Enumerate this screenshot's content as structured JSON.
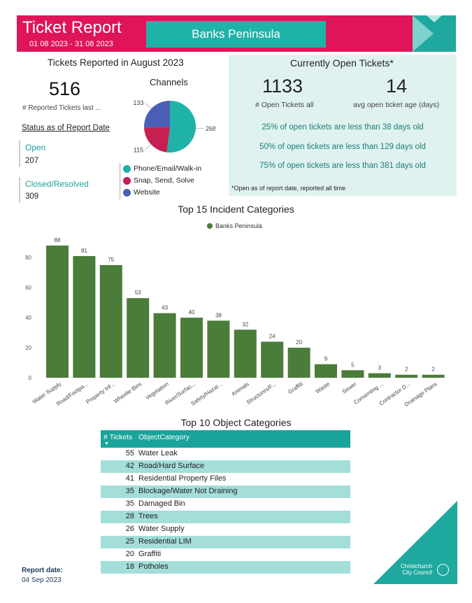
{
  "header": {
    "title": "Ticket Report",
    "date_range": "01 08 2023 - 31 08 2023",
    "region": "Banks Peninsula",
    "colors": {
      "bar": "#e0145a",
      "region_box": "#1fb2a8"
    }
  },
  "reported": {
    "heading": "Tickets Reported in August 2023",
    "count": "516",
    "count_label": "# Reported Tickets last ..."
  },
  "status": {
    "heading": "Status as of Report Date",
    "open_label": "Open",
    "open_value": "207",
    "closed_label": "Closed/Resolved",
    "closed_value": "309"
  },
  "channels": {
    "heading": "Channels",
    "slices": [
      {
        "label": "Phone/Email/Walk-in",
        "value": 268,
        "value_text": "268",
        "color": "#1fb2a8"
      },
      {
        "label": "Snap, Send, Solve",
        "value": 115,
        "value_text": "115",
        "color": "#c62050"
      },
      {
        "label": "Website",
        "value": 133,
        "value_text": "133",
        "color": "#4a5fb5"
      }
    ]
  },
  "open_tickets": {
    "heading": "Currently Open Tickets*",
    "count": "1133",
    "count_label": "# Open Tickets all",
    "avg_age": "14",
    "avg_age_label": "avg open ticket age (days)",
    "percentiles": [
      "25% of open tickets are less than 38 days old",
      "50% of open tickets are less than 129 days old",
      "75% of open tickets are less than 381 days old"
    ],
    "footnote": "*Open as of report date, reported all time"
  },
  "chart_data": {
    "type": "bar",
    "title": "Top 15 Incident Categories",
    "legend": "Banks Peninsula",
    "color": "#4a7c3a",
    "categories": [
      "Water Supply",
      "Road/Footpa...",
      "Property Inf...",
      "Wheelie Bins",
      "Vegetation",
      "River/Surfac...",
      "Safety/Hazar...",
      "Animals",
      "Structures/F...",
      "Graffiti",
      "Waste",
      "Sewer",
      "Consenting ...",
      "Contractor D...",
      "Drainage Plans"
    ],
    "values": [
      88,
      81,
      75,
      53,
      43,
      40,
      38,
      32,
      24,
      20,
      9,
      5,
      3,
      2,
      2
    ],
    "yticks": [
      0,
      20,
      40,
      60,
      80
    ],
    "ylim": [
      0,
      95
    ]
  },
  "table": {
    "title": "Top 10 Object Categories",
    "col_count": "# Tickets",
    "col_category": "ObjectCategory",
    "rows": [
      {
        "count": "55",
        "category": "Water Leak"
      },
      {
        "count": "42",
        "category": "Road/Hard Surface"
      },
      {
        "count": "41",
        "category": "Residential Property Files"
      },
      {
        "count": "35",
        "category": "Blockage/Water Not Draining"
      },
      {
        "count": "35",
        "category": "Damaged Bin"
      },
      {
        "count": "28",
        "category": "Trees"
      },
      {
        "count": "26",
        "category": "Water Supply"
      },
      {
        "count": "25",
        "category": "Residential LIM"
      },
      {
        "count": "20",
        "category": "Graffiti"
      },
      {
        "count": "18",
        "category": "Potholes"
      }
    ]
  },
  "footer": {
    "report_date_label": "Report date:",
    "report_date": "04 Sep 2023",
    "logo_line1": "Christchurch",
    "logo_line2": "City Council",
    "corner_color": "#1fa89e"
  }
}
